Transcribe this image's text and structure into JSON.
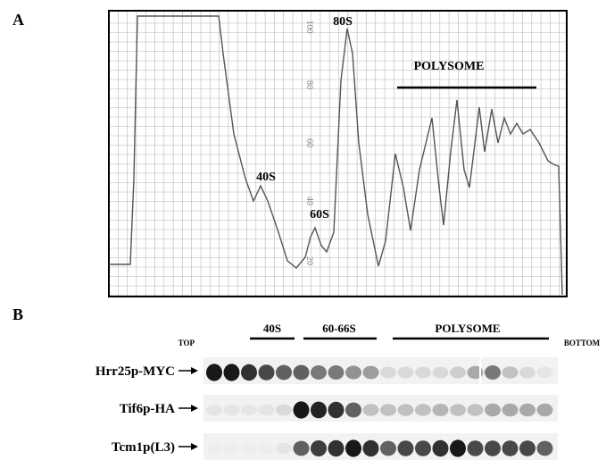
{
  "panel_a": {
    "label": "A",
    "peaks": [
      "40S",
      "60S",
      "80S"
    ],
    "polysome": "POLYSOME",
    "scale": [
      "100",
      "80",
      "60",
      "40",
      "20"
    ]
  },
  "panel_b": {
    "label": "B",
    "top": "TOP",
    "bottom": "BOTTOM",
    "fractions": [
      "40S",
      "60-66S",
      "POLYSOME"
    ],
    "rows": [
      "Hrr25p-MYC",
      "Tif6p-HA",
      "Tcm1p(L3)"
    ]
  }
}
